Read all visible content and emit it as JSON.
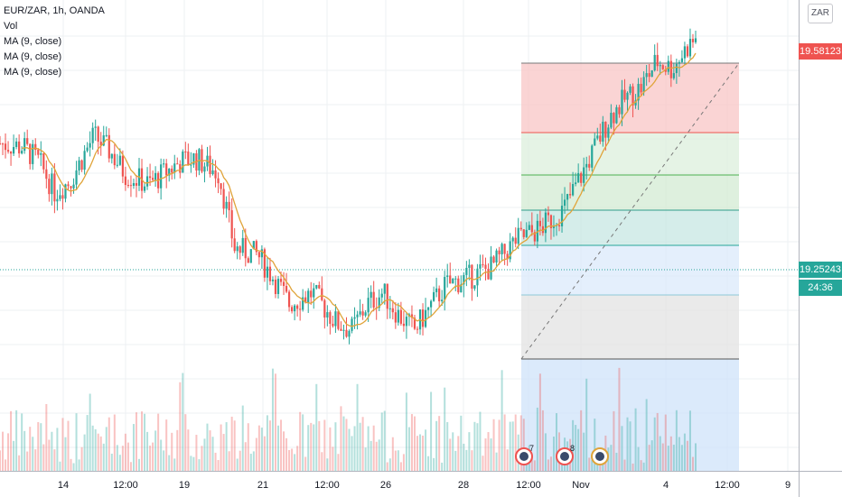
{
  "legend": {
    "symbol": "EUR/ZAR, 1h, OANDA",
    "vol": "Vol",
    "ma1": "MA (9, close)",
    "ma2": "MA (9, close)",
    "ma3": "MA (9, close)"
  },
  "price_axis": {
    "currency": "ZAR",
    "tags": [
      {
        "label": "19.58123",
        "color": "#ef5350"
      },
      {
        "label": "19.25243",
        "color": "#26a69a"
      },
      {
        "label": "24:36",
        "color": "#26a69a"
      }
    ]
  },
  "time_axis": {
    "labels": [
      "14",
      "12:00",
      "19",
      "21",
      "12:00",
      "26",
      "28",
      "12:00",
      "Nov",
      "4",
      "12:00",
      "9"
    ]
  },
  "events": [
    {
      "badge": "7"
    },
    {
      "badge": "8"
    },
    {
      "badge": ""
    }
  ],
  "colors": {
    "up": "#26a69a",
    "down": "#ef5350",
    "ma": "#e0a43a",
    "fib_top": "#ef5350"
  },
  "chart_data": {
    "type": "candlestick",
    "title": "EUR/ZAR, 1h, OANDA",
    "y_unit": "ZAR",
    "last_price": 19.25243,
    "fib_high": 19.58123,
    "indicators": [
      "Vol",
      "MA (9, close)",
      "MA (9, close)",
      "MA (9, close)"
    ],
    "price_path": [
      [
        0,
        19.48
      ],
      [
        3,
        19.47
      ],
      [
        5,
        19.43
      ],
      [
        7,
        19.35
      ],
      [
        9,
        19.38
      ],
      [
        12,
        19.5
      ],
      [
        14,
        19.46
      ],
      [
        16,
        19.4
      ],
      [
        19,
        19.37
      ],
      [
        21,
        19.4
      ],
      [
        23,
        19.43
      ],
      [
        25,
        19.44
      ],
      [
        28,
        19.4
      ],
      [
        30,
        19.2
      ],
      [
        33,
        19.18
      ],
      [
        35,
        19.12
      ],
      [
        37,
        19.05
      ],
      [
        40,
        19.08
      ],
      [
        43,
        19.0
      ],
      [
        45,
        18.98
      ],
      [
        47,
        19.05
      ],
      [
        49,
        19.08
      ],
      [
        51,
        19.02
      ],
      [
        53,
        18.98
      ],
      [
        55,
        19.04
      ],
      [
        57,
        19.1
      ],
      [
        60,
        19.12
      ],
      [
        63,
        19.15
      ],
      [
        66,
        19.22
      ],
      [
        69,
        19.25
      ],
      [
        72,
        19.3
      ],
      [
        75,
        19.42
      ],
      [
        78,
        19.55
      ],
      [
        80,
        19.6
      ],
      [
        82,
        19.63
      ],
      [
        84,
        19.7
      ],
      [
        86,
        19.68
      ],
      [
        88,
        19.74
      ],
      [
        89,
        19.76
      ]
    ],
    "note_levels": [
      19.58123,
      19.25243
    ]
  }
}
